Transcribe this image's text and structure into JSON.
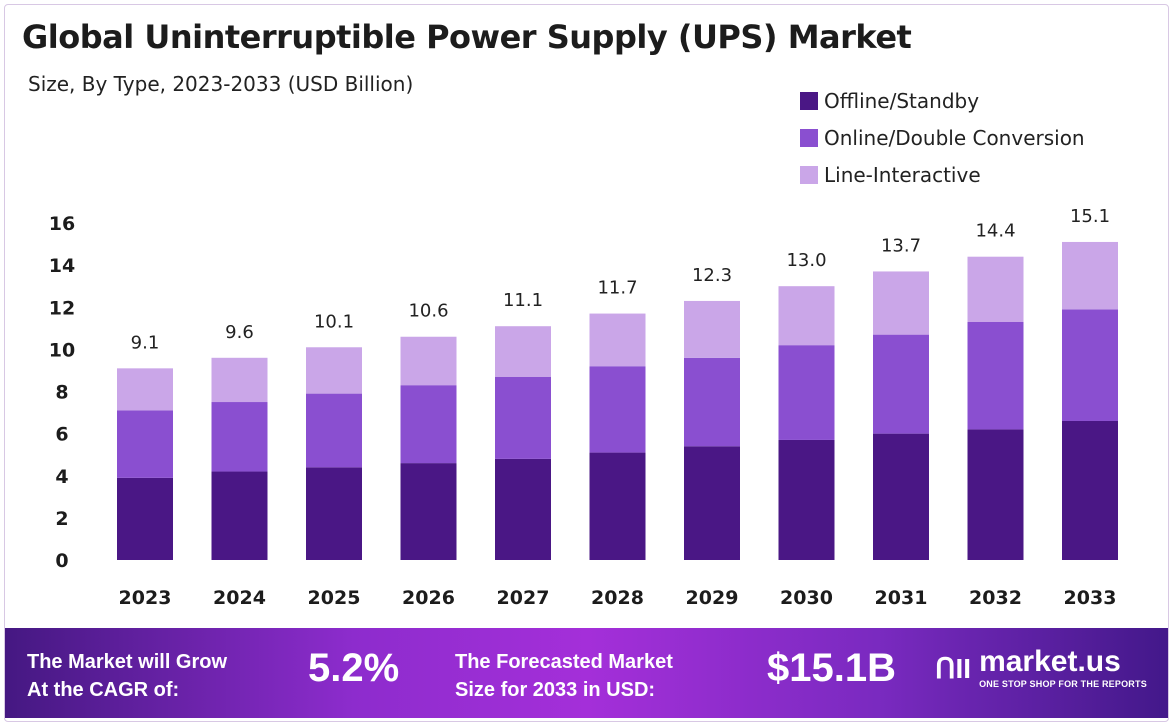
{
  "chart_data": {
    "type": "bar",
    "stacked": true,
    "title": "Global Uninterruptible Power Supply (UPS) Market",
    "subtitle": "Size, By Type, 2023-2033 (USD Billion)",
    "categories": [
      "2023",
      "2024",
      "2025",
      "2026",
      "2027",
      "2028",
      "2029",
      "2030",
      "2031",
      "2032",
      "2033"
    ],
    "series": [
      {
        "name": "Offline/Standby",
        "color": "#4a1785",
        "values": [
          3.9,
          4.2,
          4.4,
          4.6,
          4.8,
          5.1,
          5.4,
          5.7,
          6.0,
          6.2,
          6.6
        ]
      },
      {
        "name": "Online/Double Conversion",
        "color": "#8a4fd0",
        "values": [
          3.2,
          3.3,
          3.5,
          3.7,
          3.9,
          4.1,
          4.2,
          4.5,
          4.7,
          5.1,
          5.3
        ]
      },
      {
        "name": "Line-Interactive",
        "color": "#caa6e8",
        "values": [
          2.0,
          2.1,
          2.2,
          2.3,
          2.4,
          2.5,
          2.7,
          2.8,
          3.0,
          3.1,
          3.2
        ]
      }
    ],
    "totals": [
      "9.1",
      "9.6",
      "10.1",
      "10.6",
      "11.1",
      "11.7",
      "12.3",
      "13.0",
      "13.7",
      "14.4",
      "15.1"
    ],
    "yticks": [
      "0",
      "2",
      "4",
      "6",
      "8",
      "10",
      "12",
      "14",
      "16"
    ],
    "ylim": [
      0,
      16
    ],
    "grid": false,
    "legend": "top-right"
  },
  "footer": {
    "cagr_label_1": "The Market will Grow",
    "cagr_label_2": "At the CAGR of:",
    "cagr_value": "5.2%",
    "forecast_label_1": "The Forecasted Market",
    "forecast_label_2": "Size for 2033 in USD:",
    "forecast_value": "$15.1B",
    "logo_mark": "ՈII",
    "logo_name": "market.us",
    "logo_tagline": "ONE STOP SHOP FOR THE REPORTS"
  }
}
